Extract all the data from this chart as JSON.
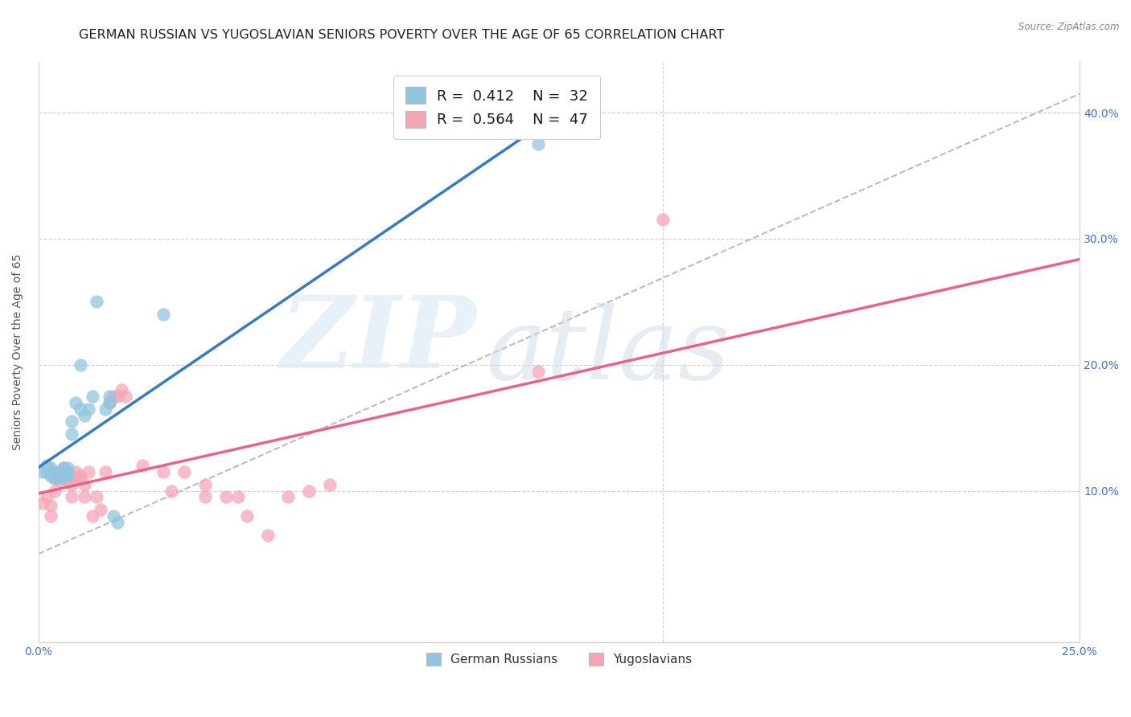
{
  "title": "GERMAN RUSSIAN VS YUGOSLAVIAN SENIORS POVERTY OVER THE AGE OF 65 CORRELATION CHART",
  "source": "Source: ZipAtlas.com",
  "ylabel": "Seniors Poverty Over the Age of 65",
  "xlim": [
    0.0,
    0.25
  ],
  "ylim": [
    -0.02,
    0.44
  ],
  "blue_color": "#92c5de",
  "pink_color": "#f4a6b8",
  "blue_line_color": "#3a7abf",
  "pink_line_color": "#e8638a",
  "dashed_line_color": "#bbbbbb",
  "legend_R1": "0.412",
  "legend_N1": "32",
  "legend_R2": "0.564",
  "legend_N2": "47",
  "label1": "German Russians",
  "label2": "Yugoslavians",
  "watermark_zip": "ZIP",
  "watermark_atlas": "atlas",
  "title_fontsize": 11.5,
  "axis_label_fontsize": 10,
  "tick_fontsize": 10,
  "blue_scatter_x": [
    0.001,
    0.002,
    0.002,
    0.003,
    0.003,
    0.003,
    0.004,
    0.004,
    0.005,
    0.005,
    0.006,
    0.006,
    0.006,
    0.007,
    0.007,
    0.007,
    0.008,
    0.008,
    0.009,
    0.01,
    0.01,
    0.011,
    0.012,
    0.013,
    0.014,
    0.016,
    0.017,
    0.017,
    0.018,
    0.019,
    0.03,
    0.12
  ],
  "blue_scatter_y": [
    0.115,
    0.12,
    0.115,
    0.112,
    0.115,
    0.118,
    0.11,
    0.115,
    0.11,
    0.115,
    0.112,
    0.115,
    0.118,
    0.112,
    0.118,
    0.115,
    0.145,
    0.155,
    0.17,
    0.165,
    0.2,
    0.16,
    0.165,
    0.175,
    0.25,
    0.165,
    0.17,
    0.175,
    0.08,
    0.075,
    0.24,
    0.375
  ],
  "pink_scatter_x": [
    0.001,
    0.002,
    0.003,
    0.003,
    0.004,
    0.004,
    0.005,
    0.005,
    0.006,
    0.006,
    0.006,
    0.007,
    0.007,
    0.007,
    0.008,
    0.008,
    0.009,
    0.009,
    0.01,
    0.01,
    0.011,
    0.011,
    0.012,
    0.013,
    0.014,
    0.015,
    0.016,
    0.017,
    0.018,
    0.019,
    0.02,
    0.021,
    0.025,
    0.03,
    0.032,
    0.035,
    0.04,
    0.04,
    0.045,
    0.048,
    0.05,
    0.055,
    0.06,
    0.065,
    0.07,
    0.12,
    0.15
  ],
  "pink_scatter_y": [
    0.09,
    0.095,
    0.08,
    0.088,
    0.1,
    0.11,
    0.112,
    0.108,
    0.115,
    0.112,
    0.118,
    0.108,
    0.115,
    0.112,
    0.095,
    0.105,
    0.11,
    0.115,
    0.11,
    0.112,
    0.095,
    0.105,
    0.115,
    0.08,
    0.095,
    0.085,
    0.115,
    0.17,
    0.175,
    0.175,
    0.18,
    0.175,
    0.12,
    0.115,
    0.1,
    0.115,
    0.095,
    0.105,
    0.095,
    0.095,
    0.08,
    0.065,
    0.095,
    0.1,
    0.105,
    0.195,
    0.315
  ]
}
